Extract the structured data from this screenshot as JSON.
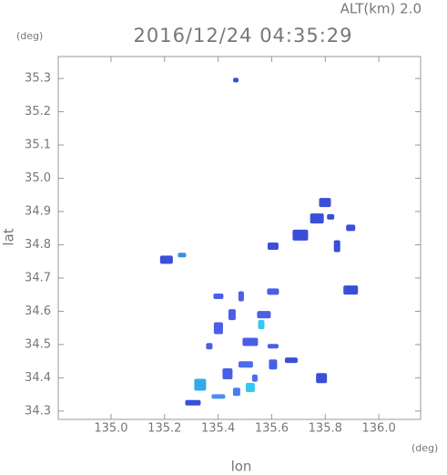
{
  "chart_data": {
    "type": "scatter",
    "title": "2016/12/24 04:35:29",
    "annotation": "ALT(km) 2.0",
    "y_unit": "(deg)",
    "x_unit": "(deg)",
    "x_label": "lon",
    "y_label": "lat",
    "xlim": [
      134.803,
      136.156
    ],
    "ylim": [
      34.275,
      35.366
    ],
    "xticks": [
      {
        "value": 135,
        "label": "135.0"
      },
      {
        "value": 135.2,
        "label": "135.2"
      },
      {
        "value": 135.4,
        "label": "135.4"
      },
      {
        "value": 135.6,
        "label": "135.6"
      },
      {
        "value": 135.8,
        "label": "135.8"
      },
      {
        "value": 136,
        "label": "136.0"
      }
    ],
    "yticks": [
      34.3,
      34.4,
      34.5,
      34.6,
      34.7,
      34.8,
      34.9,
      {
        "value": 35,
        "label": "35.0"
      },
      35.1,
      35.2,
      35.3
    ],
    "x": [
      135.466,
      135.799,
      135.82,
      135.769,
      135.895,
      135.707,
      135.605,
      135.844,
      135.207,
      135.265,
      135.895,
      135.401,
      135.486,
      135.605,
      135.452,
      135.571,
      135.401,
      135.52,
      135.605,
      135.561,
      135.673,
      135.605,
      135.503,
      135.435,
      135.537,
      135.333,
      135.469,
      135.401,
      135.52,
      135.306,
      135.786,
      135.367
    ],
    "y": [
      35.295,
      34.927,
      34.884,
      34.879,
      34.851,
      34.829,
      34.796,
      34.796,
      34.755,
      34.769,
      34.664,
      34.645,
      34.645,
      34.659,
      34.59,
      34.59,
      34.549,
      34.508,
      34.495,
      34.56,
      34.453,
      34.44,
      34.44,
      34.412,
      34.399,
      34.379,
      34.358,
      34.344,
      34.371,
      34.325,
      34.399,
      34.495
    ],
    "colors": [
      "#3a4fd8",
      "#3a4fd8",
      "#3a4fd8",
      "#3a4fd8",
      "#3a4fd8",
      "#3a4fd8",
      "#3a4fd8",
      "#3a4fd8",
      "#3a4fd8",
      "#3a8fe0",
      "#3a4fd8",
      "#4a5ee8",
      "#4a5ee8",
      "#4a5ee8",
      "#4a5ee8",
      "#4a5ee8",
      "#4a5ee8",
      "#4a5ee8",
      "#4a5ee8",
      "#34c8f0",
      "#3a4fd8",
      "#4a5ee8",
      "#4a6ee8",
      "#4a5ee8",
      "#4a6ee8",
      "#34a8e8",
      "#4a7ef0",
      "#4a8ef0",
      "#34c8f0",
      "#3a4fd8",
      "#3a4fd8",
      "#4a5ee8"
    ]
  }
}
